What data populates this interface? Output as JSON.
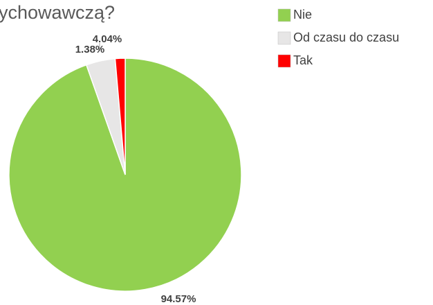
{
  "chart_data": {
    "type": "pie",
    "title": "ychowawczą?",
    "categories": [
      "Nie",
      "Od czasu do czasu",
      "Tak"
    ],
    "values": [
      94.57,
      4.04,
      1.38
    ],
    "value_labels": [
      "94.57%",
      "4.04%",
      "1.38%"
    ],
    "colors": [
      "#92d050",
      "#e7e6e6",
      "#ff0000"
    ],
    "legend": "right"
  }
}
